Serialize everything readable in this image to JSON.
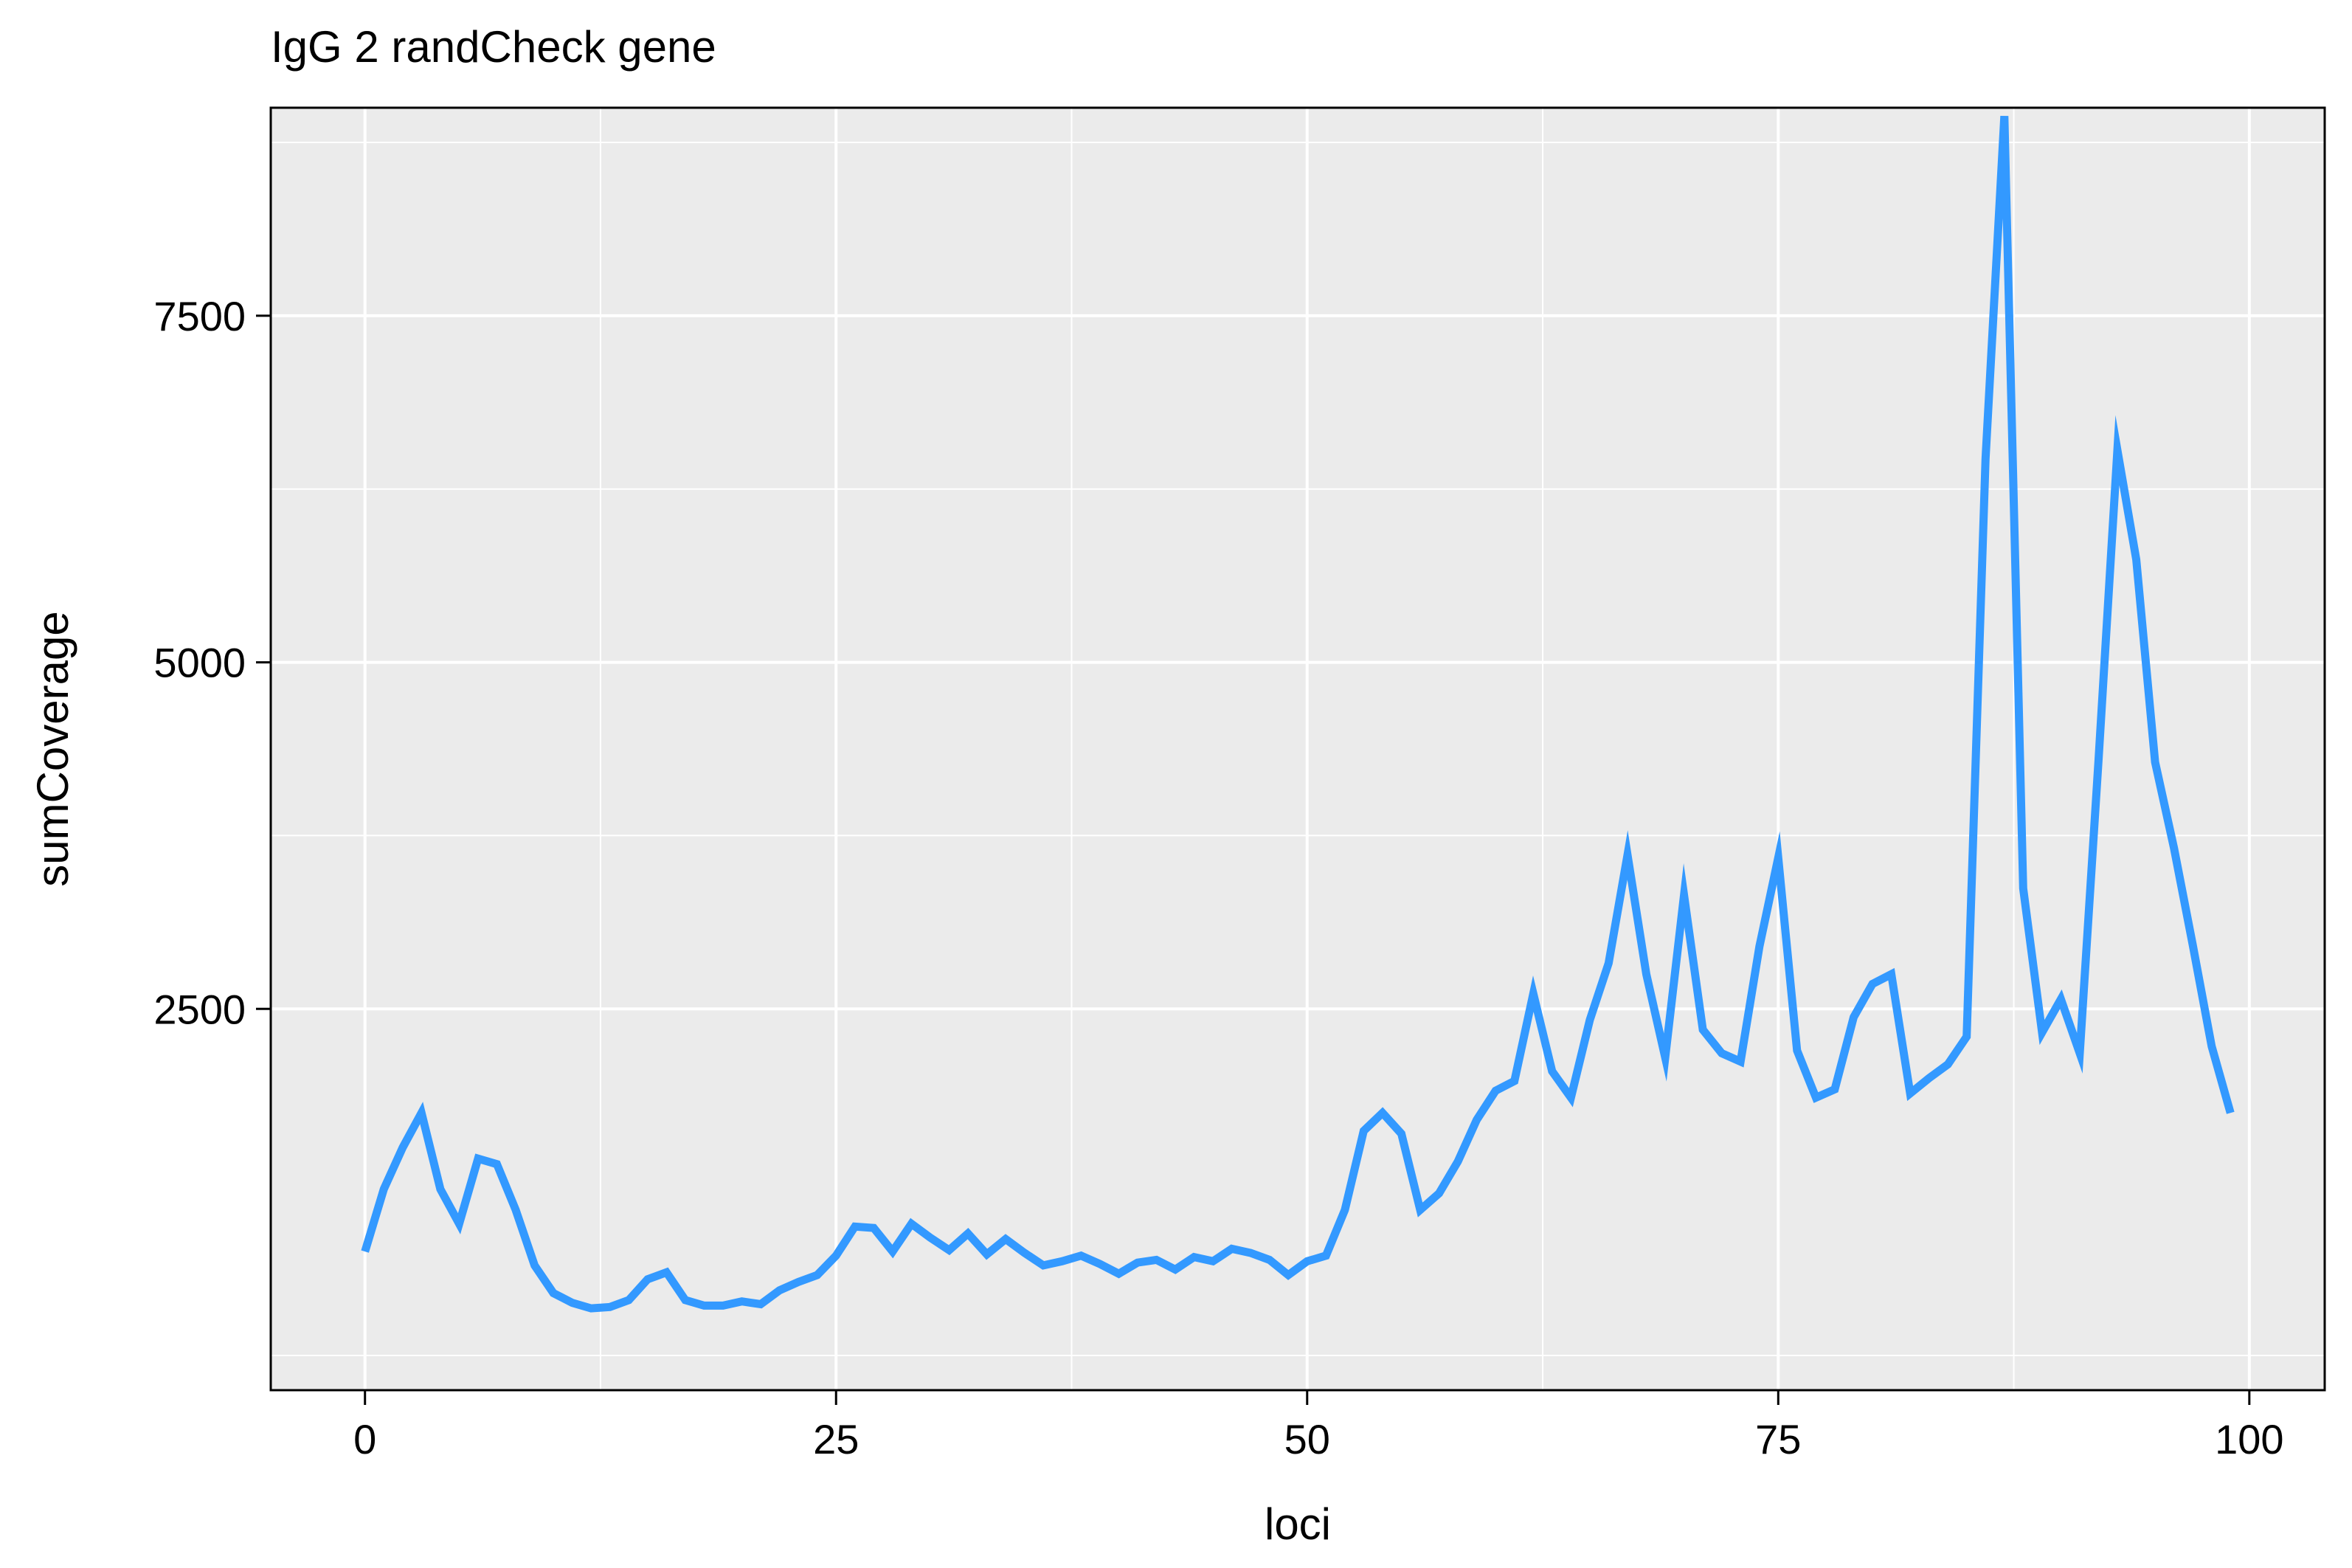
{
  "chart_data": {
    "type": "line",
    "title": "IgG 2 randCheck gene",
    "xlabel": "loci",
    "ylabel": "sumCoverage",
    "xlim": [
      -5,
      104
    ],
    "ylim": [
      -250,
      9000
    ],
    "x_ticks": [
      0,
      25,
      50,
      75,
      100
    ],
    "y_ticks": [
      2500,
      5000,
      7500
    ],
    "grid": true,
    "background_color": "#EBEBEB",
    "line_color": "#3399FF",
    "series": [
      {
        "x": [
          0,
          1,
          2,
          3,
          4,
          5,
          6,
          7,
          8,
          9,
          10,
          11,
          12,
          13,
          14,
          15,
          16,
          17,
          18,
          19,
          20,
          21,
          22,
          23,
          24,
          25,
          26,
          27,
          28,
          29,
          30,
          31,
          32,
          33,
          34,
          35,
          36,
          37,
          38,
          39,
          40,
          41,
          42,
          43,
          44,
          45,
          46,
          47,
          48,
          49,
          50,
          51,
          52,
          53,
          54,
          55,
          56,
          57,
          58,
          59,
          60,
          61,
          62,
          63,
          64,
          65,
          66,
          67,
          68,
          69,
          70,
          71,
          72,
          73,
          74,
          75,
          76,
          77,
          78,
          79,
          80,
          81,
          82,
          83,
          84,
          85,
          86,
          87,
          88,
          89,
          90,
          91,
          92,
          93,
          94,
          95,
          96,
          97,
          98,
          99
        ],
        "values": [
          750,
          1200,
          1500,
          1750,
          1200,
          950,
          1420,
          1380,
          1050,
          650,
          450,
          380,
          340,
          350,
          400,
          550,
          600,
          400,
          360,
          360,
          390,
          370,
          470,
          530,
          580,
          720,
          930,
          920,
          750,
          950,
          850,
          760,
          880,
          730,
          840,
          740,
          650,
          680,
          720,
          660,
          590,
          670,
          690,
          620,
          710,
          680,
          770,
          740,
          690,
          580,
          680,
          720,
          1050,
          1620,
          1750,
          1600,
          1050,
          1170,
          1400,
          1700,
          1910,
          1980,
          2610,
          2050,
          1860,
          2420,
          2830,
          3610,
          2750,
          2150,
          3320,
          2350,
          2180,
          2120,
          2950,
          3590,
          2200,
          1860,
          1920,
          2440,
          2680,
          2750,
          1890,
          2000,
          2100,
          2300,
          6470,
          8940,
          3370,
          2330,
          2570,
          2180,
          4300,
          6530,
          5740,
          4280,
          3660,
          2960,
          2230,
          1750
        ]
      }
    ]
  }
}
